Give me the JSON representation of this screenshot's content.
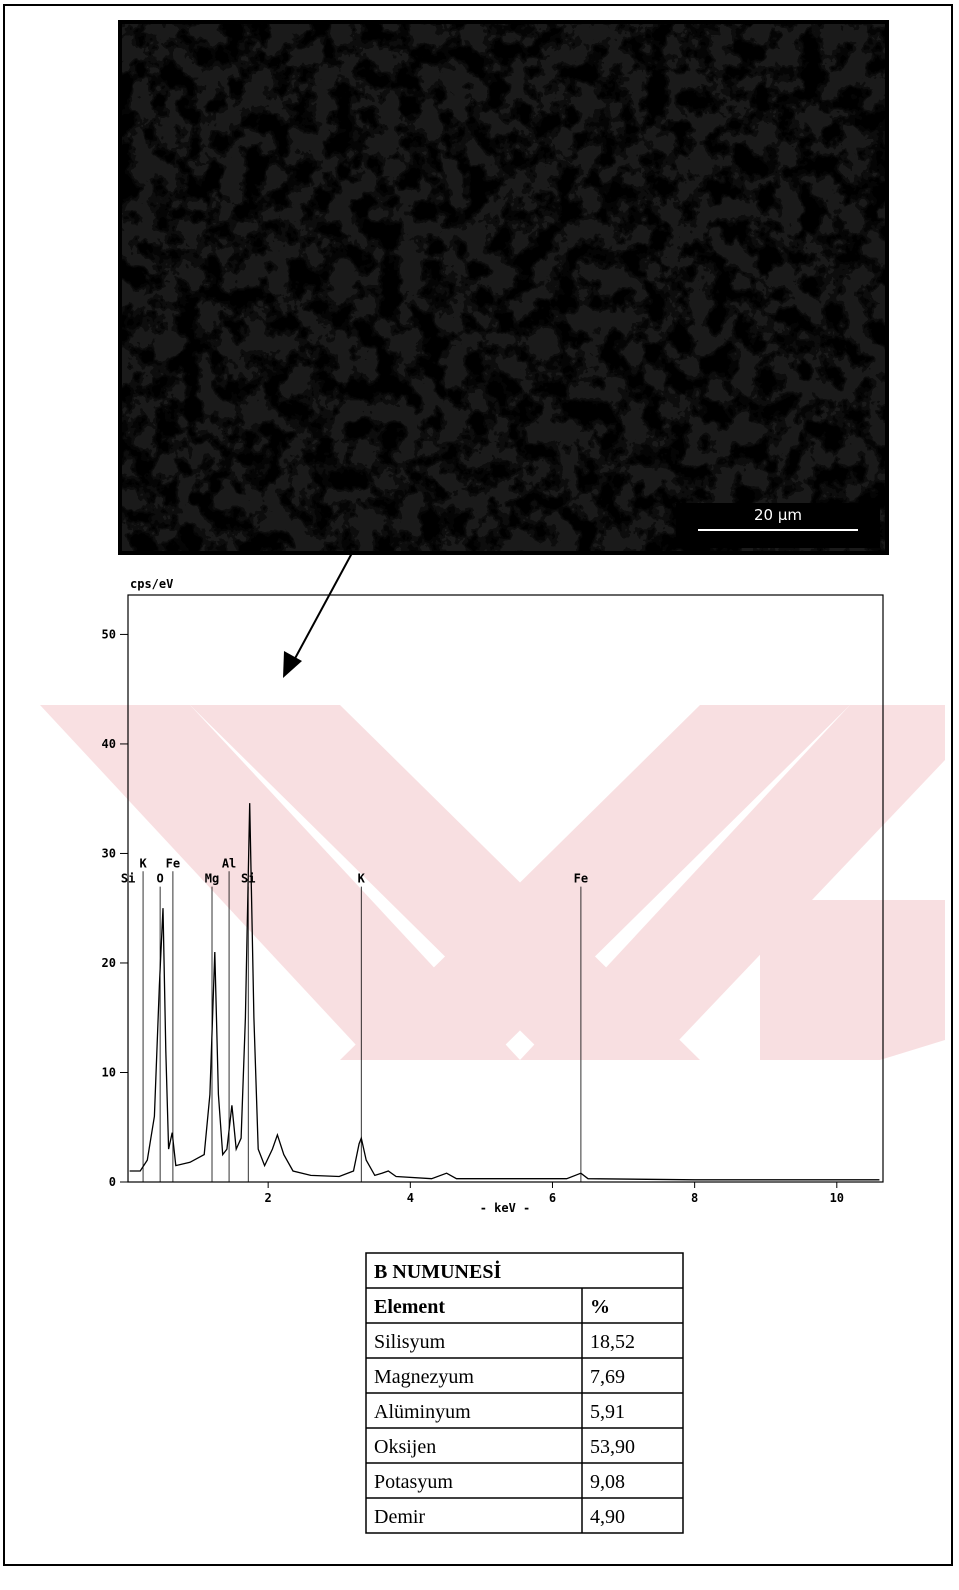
{
  "image": {
    "scale_bar": "20 µm"
  },
  "chart_data": {
    "type": "line",
    "y_label": "cps/eV",
    "x_label": "- keV -",
    "xlim": [
      0,
      10.65
    ],
    "xticks": [
      2,
      4,
      6,
      8,
      10
    ],
    "ylim": [
      0,
      53.6
    ],
    "yticks": [
      0,
      10,
      20,
      30,
      40,
      50
    ],
    "color": "#000000",
    "x": [
      0.05,
      0.2,
      0.3,
      0.4,
      0.47,
      0.52,
      0.56,
      0.6,
      0.65,
      0.7,
      0.9,
      1.1,
      1.18,
      1.25,
      1.3,
      1.36,
      1.42,
      1.49,
      1.55,
      1.62,
      1.68,
      1.74,
      1.8,
      1.86,
      1.95,
      2.06,
      2.13,
      2.22,
      2.35,
      2.6,
      3.0,
      3.2,
      3.28,
      3.31,
      3.38,
      3.5,
      3.6,
      3.69,
      3.8,
      4.3,
      4.51,
      4.65,
      5.5,
      6.2,
      6.4,
      6.5,
      8,
      10.6
    ],
    "values": [
      1,
      1,
      2,
      6,
      18,
      25,
      12,
      3,
      4.5,
      1.5,
      1.8,
      2.5,
      8,
      21,
      8,
      2.5,
      3,
      7,
      3,
      4,
      15,
      34.6,
      15,
      3,
      1.5,
      3,
      4.3,
      2.5,
      1,
      0.6,
      0.5,
      1,
      3.5,
      4,
      2,
      0.6,
      0.8,
      1,
      0.5,
      0.3,
      0.8,
      0.3,
      0.3,
      0.3,
      0.8,
      0.3,
      0.2,
      0.2
    ],
    "annotations": [
      {
        "text": "Si",
        "x": 0.03,
        "y": 27.7
      },
      {
        "text": "K",
        "x": 0.24,
        "y": 29.1
      },
      {
        "text": "Fe",
        "x": 0.66,
        "y": 29.1
      },
      {
        "text": "O",
        "x": 0.48,
        "y": 27.7
      },
      {
        "text": "Mg",
        "x": 1.21,
        "y": 27.7
      },
      {
        "text": "Al",
        "x": 1.45,
        "y": 29.1
      },
      {
        "text": "Si",
        "x": 1.72,
        "y": 27.7
      },
      {
        "text": "K",
        "x": 3.31,
        "y": 27.7
      },
      {
        "text": "Fe",
        "x": 6.4,
        "y": 27.7
      }
    ]
  },
  "table": {
    "title": "B NUMUNESİ",
    "header": [
      "Element",
      "%"
    ],
    "rows": [
      [
        "Silisyum",
        "18,52"
      ],
      [
        "Magnezyum",
        "7,69"
      ],
      [
        "Alüminyum",
        "5,91"
      ],
      [
        "Oksijen",
        "53,90"
      ],
      [
        "Potasyum",
        "9,08"
      ],
      [
        "Demir",
        "4,90"
      ]
    ]
  }
}
